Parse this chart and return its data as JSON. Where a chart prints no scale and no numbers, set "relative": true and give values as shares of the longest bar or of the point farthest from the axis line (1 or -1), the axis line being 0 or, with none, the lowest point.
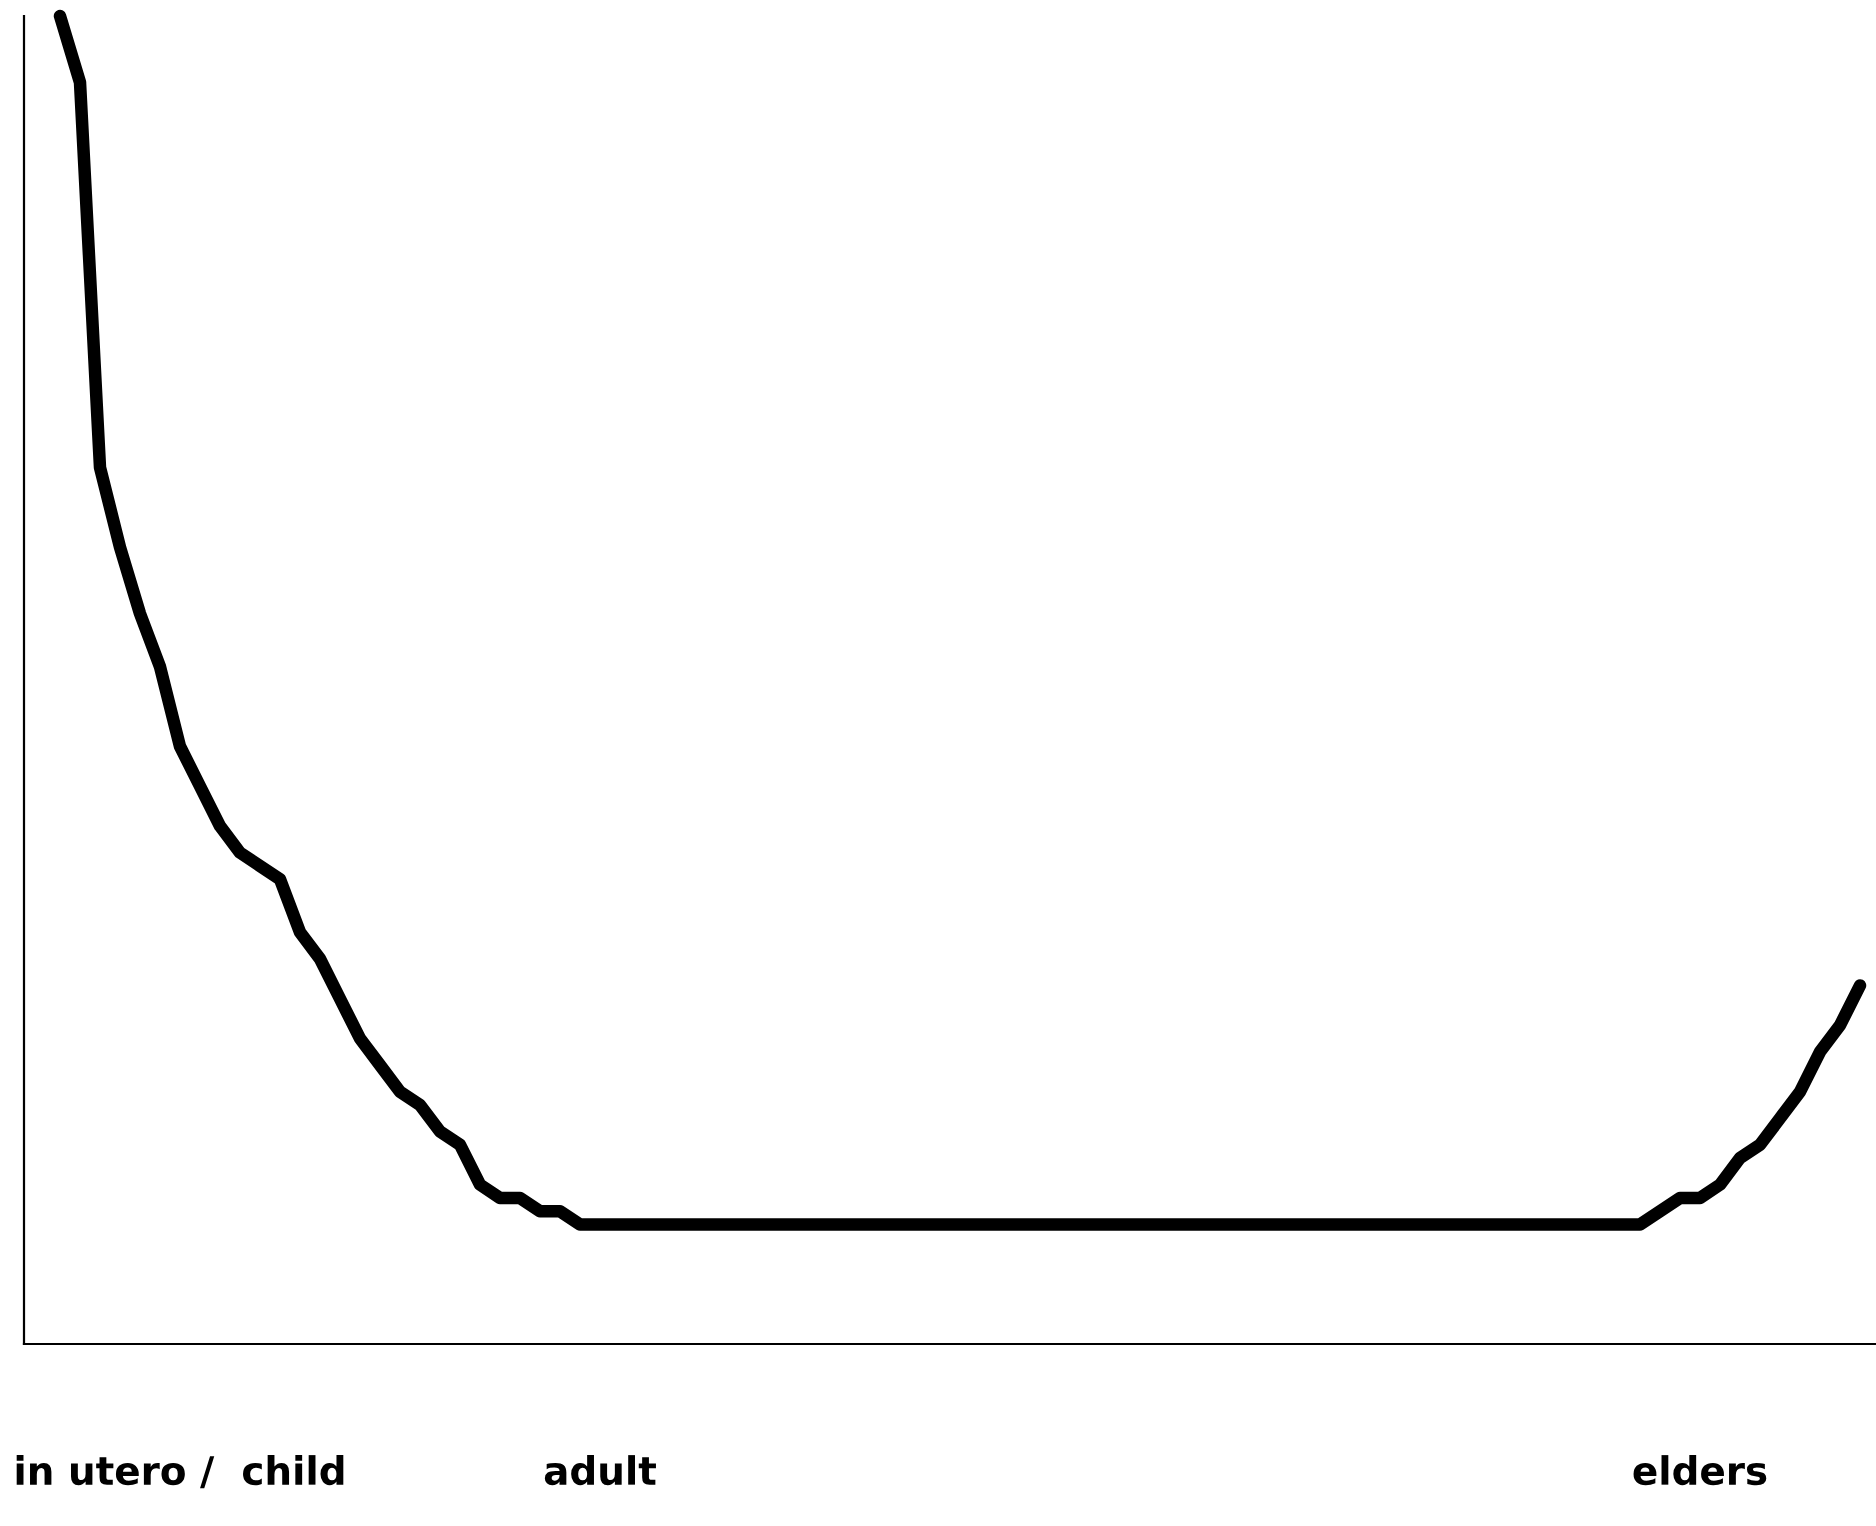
{
  "chart_data": {
    "type": "line",
    "relative": true,
    "grid": false,
    "marker": "none",
    "line_style": "solid",
    "categories": [
      null,
      null,
      null,
      null,
      null,
      null,
      "in utero /  child",
      null,
      null,
      null,
      null,
      null,
      null,
      null,
      null,
      null,
      null,
      null,
      null,
      null,
      null,
      null,
      null,
      null,
      null,
      null,
      null,
      "adult",
      null,
      null,
      null,
      null,
      null,
      null,
      null,
      null,
      null,
      null,
      null,
      null,
      null,
      null,
      null,
      null,
      null,
      null,
      null,
      null,
      null,
      null,
      null,
      null,
      null,
      null,
      null,
      null,
      null,
      null,
      null,
      null,
      null,
      null,
      null,
      null,
      null,
      null,
      null,
      null,
      null,
      null,
      null,
      null,
      null,
      null,
      null,
      null,
      null,
      null,
      null,
      null,
      null,
      null,
      "elders",
      null,
      null,
      null,
      null,
      null,
      null,
      null,
      null
    ],
    "series": [
      {
        "color": "#000000",
        "values": [
          1,
          0.95,
          0.66,
          0.6,
          0.55,
          0.51,
          0.45,
          0.42,
          0.39,
          0.37,
          0.36,
          0.35,
          0.31,
          0.29,
          0.26,
          0.23,
          0.21,
          0.19,
          0.18,
          0.16,
          0.15,
          0.12,
          0.11,
          0.11,
          0.1,
          0.1,
          0.09,
          0.09,
          0.09,
          0.09,
          0.09,
          0.09,
          0.09,
          0.09,
          0.09,
          0.09,
          0.09,
          0.09,
          0.09,
          0.09,
          0.09,
          0.09,
          0.09,
          0.09,
          0.09,
          0.09,
          0.09,
          0.09,
          0.09,
          0.09,
          0.09,
          0.09,
          0.09,
          0.09,
          0.09,
          0.09,
          0.09,
          0.09,
          0.09,
          0.09,
          0.09,
          0.09,
          0.09,
          0.09,
          0.09,
          0.09,
          0.09,
          0.09,
          0.09,
          0.09,
          0.09,
          0.09,
          0.09,
          0.09,
          0.09,
          0.09,
          0.09,
          0.09,
          0.09,
          0.09,
          0.1,
          0.11,
          0.11,
          0.12,
          0.14,
          0.15,
          0.17,
          0.19,
          0.22,
          0.24,
          0.27
        ]
      }
    ]
  }
}
